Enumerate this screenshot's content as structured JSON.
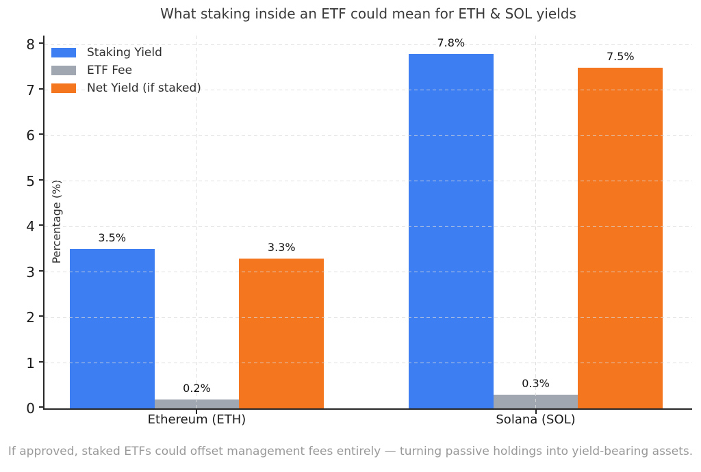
{
  "title": "What staking inside an ETF could mean for ETH & SOL yields",
  "footer": "If approved, staked ETFs could offset management fees entirely — turning passive holdings into yield-bearing assets.",
  "colors": {
    "staking_yield": "#3d7ef2",
    "etf_fee": "#a1a7b1",
    "net_yield": "#f4761f",
    "axis": "#262626",
    "grid": "#d9d9d9",
    "footer_text": "#999999"
  },
  "chart_data": {
    "type": "bar",
    "title": "What staking inside an ETF could mean for ETH & SOL yields",
    "xlabel": "",
    "ylabel": "Percentage (%)",
    "ylim": [
      0,
      8.2
    ],
    "yticks": [
      0,
      1,
      2,
      3,
      4,
      5,
      6,
      7,
      8
    ],
    "grid": true,
    "legend_position": "upper-left",
    "categories": [
      "Ethereum (ETH)",
      "Solana (SOL)"
    ],
    "series": [
      {
        "name": "Staking Yield",
        "color": "#3d7ef2",
        "values": [
          3.5,
          7.8
        ],
        "labels": [
          "3.5%",
          "7.8%"
        ]
      },
      {
        "name": "ETF Fee",
        "color": "#a1a7b1",
        "values": [
          0.2,
          0.3
        ],
        "labels": [
          "0.2%",
          "0.3%"
        ]
      },
      {
        "name": "Net Yield (if staked)",
        "color": "#f4761f",
        "values": [
          3.3,
          7.5
        ],
        "labels": [
          "3.3%",
          "7.5%"
        ]
      }
    ],
    "annotation": "If approved, staked ETFs could offset management fees entirely — turning passive holdings into yield-bearing assets."
  }
}
